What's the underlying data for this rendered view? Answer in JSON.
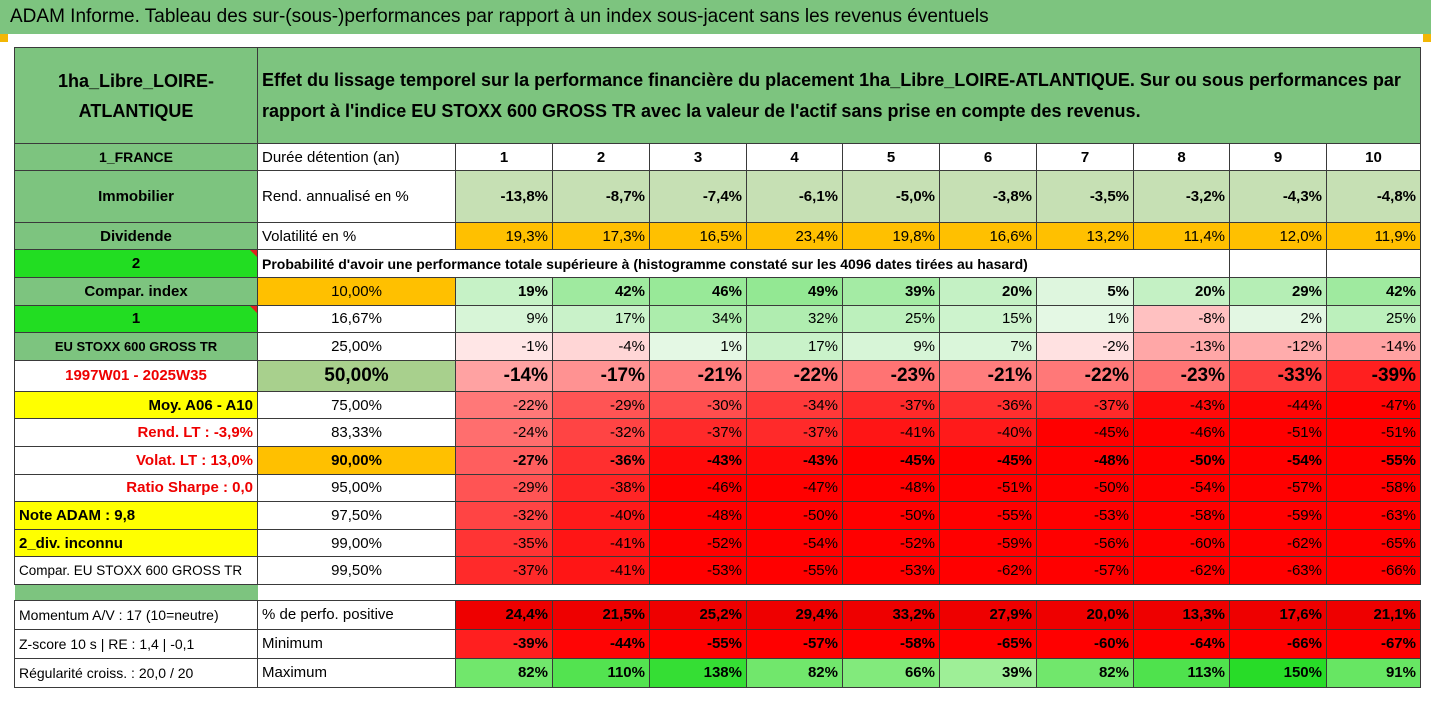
{
  "title": "ADAM Informe. Tableau des sur-(sous-)performances par rapport à un index sous-jacent sans les revenus éventuels",
  "header": {
    "fund_name": "1ha_Libre_LOIRE-ATLANTIQUE",
    "description": "Effet du lissage temporel sur la performance financière du placement 1ha_Libre_LOIRE-ATLANTIQUE. Sur ou sous performances par rapport à l'indice EU STOXX 600 GROSS TR avec la valeur de l'actif sans prise en compte des revenus."
  },
  "duration_row": {
    "left": "1_FRANCE",
    "label": "Durée détention (an)",
    "years": [
      "1",
      "2",
      "3",
      "4",
      "5",
      "6",
      "7",
      "8",
      "9",
      "10"
    ]
  },
  "rend_row": {
    "left": "Immobilier",
    "label": "Rend. annualisé en %",
    "values": [
      "-13,8%",
      "-8,7%",
      "-7,4%",
      "-6,1%",
      "-5,0%",
      "-3,8%",
      "-3,5%",
      "-3,2%",
      "-4,3%",
      "-4,8%"
    ]
  },
  "vol_row": {
    "left": "Dividende",
    "label": "Volatilité en %",
    "values": [
      "19,3%",
      "17,3%",
      "16,5%",
      "23,4%",
      "19,8%",
      "16,6%",
      "13,2%",
      "11,4%",
      "12,0%",
      "11,9%"
    ]
  },
  "prob_row": {
    "left": "2",
    "label": "Probabilité d'avoir une performance totale supérieure à (histogramme constaté sur les 4096 dates tirées au hasard)"
  },
  "quantile_rows": [
    {
      "left": "Compar. index",
      "pct": "10,00%",
      "values": [
        "19%",
        "42%",
        "46%",
        "49%",
        "39%",
        "20%",
        "5%",
        "20%",
        "29%",
        "42%"
      ]
    },
    {
      "left": "1",
      "pct": "16,67%",
      "values": [
        "9%",
        "17%",
        "34%",
        "32%",
        "25%",
        "15%",
        "1%",
        "-8%",
        "2%",
        "25%"
      ]
    },
    {
      "left": "EU STOXX 600 GROSS TR",
      "pct": "25,00%",
      "values": [
        "-1%",
        "-4%",
        "1%",
        "17%",
        "9%",
        "7%",
        "-2%",
        "-13%",
        "-12%",
        "-14%"
      ]
    },
    {
      "left": "1997W01 - 2025W35",
      "pct": "50,00%",
      "values": [
        "-14%",
        "-17%",
        "-21%",
        "-22%",
        "-23%",
        "-21%",
        "-22%",
        "-23%",
        "-33%",
        "-39%"
      ]
    },
    {
      "left": "Moy. A06 - A10",
      "pct": "75,00%",
      "values": [
        "-22%",
        "-29%",
        "-30%",
        "-34%",
        "-37%",
        "-36%",
        "-37%",
        "-43%",
        "-44%",
        "-47%"
      ]
    },
    {
      "left": "Rend. LT :   -3,9%",
      "pct": "83,33%",
      "values": [
        "-24%",
        "-32%",
        "-37%",
        "-37%",
        "-41%",
        "-40%",
        "-45%",
        "-46%",
        "-51%",
        "-51%"
      ]
    },
    {
      "left": "Volat. LT :   13,0%",
      "pct": "90,00%",
      "values": [
        "-27%",
        "-36%",
        "-43%",
        "-43%",
        "-45%",
        "-45%",
        "-48%",
        "-50%",
        "-54%",
        "-55%"
      ]
    },
    {
      "left": "Ratio Sharpe :   0,0",
      "pct": "95,00%",
      "values": [
        "-29%",
        "-38%",
        "-46%",
        "-47%",
        "-48%",
        "-51%",
        "-50%",
        "-54%",
        "-57%",
        "-58%"
      ]
    },
    {
      "left": "Note ADAM : 9,8",
      "pct": "97,50%",
      "values": [
        "-32%",
        "-40%",
        "-48%",
        "-50%",
        "-50%",
        "-55%",
        "-53%",
        "-58%",
        "-59%",
        "-63%"
      ]
    },
    {
      "left": "2_div. inconnu",
      "pct": "99,00%",
      "values": [
        "-35%",
        "-41%",
        "-52%",
        "-54%",
        "-52%",
        "-59%",
        "-56%",
        "-60%",
        "-62%",
        "-65%"
      ]
    },
    {
      "left": "Compar. EU STOXX 600 GROSS TR",
      "pct": "99,50%",
      "values": [
        "-37%",
        "-41%",
        "-53%",
        "-55%",
        "-53%",
        "-62%",
        "-57%",
        "-62%",
        "-63%",
        "-66%"
      ]
    }
  ],
  "bottom_rows": [
    {
      "left": "Momentum A/V : 17 (10=neutre)",
      "label": "% de perfo. positive",
      "values": [
        "24,4%",
        "21,5%",
        "25,2%",
        "29,4%",
        "33,2%",
        "27,9%",
        "20,0%",
        "13,3%",
        "17,6%",
        "21,1%"
      ]
    },
    {
      "left": "Z-score 10 s  |  RE : 1,4  |  -0,1",
      "label": "Minimum",
      "values": [
        "-39%",
        "-44%",
        "-55%",
        "-57%",
        "-58%",
        "-65%",
        "-60%",
        "-64%",
        "-66%",
        "-67%"
      ]
    },
    {
      "left": "Régularité croiss. : 20,0 / 20",
      "label": "Maximum",
      "values": [
        "82%",
        "110%",
        "138%",
        "82%",
        "66%",
        "39%",
        "82%",
        "113%",
        "150%",
        "91%"
      ]
    }
  ],
  "colors": {
    "header_green": "#7dc47f",
    "light_green": "#a8d08d",
    "orange": "#ffc000",
    "yellow": "#ffff00",
    "bright_green": "#22dd22",
    "red": "#ff0000"
  }
}
